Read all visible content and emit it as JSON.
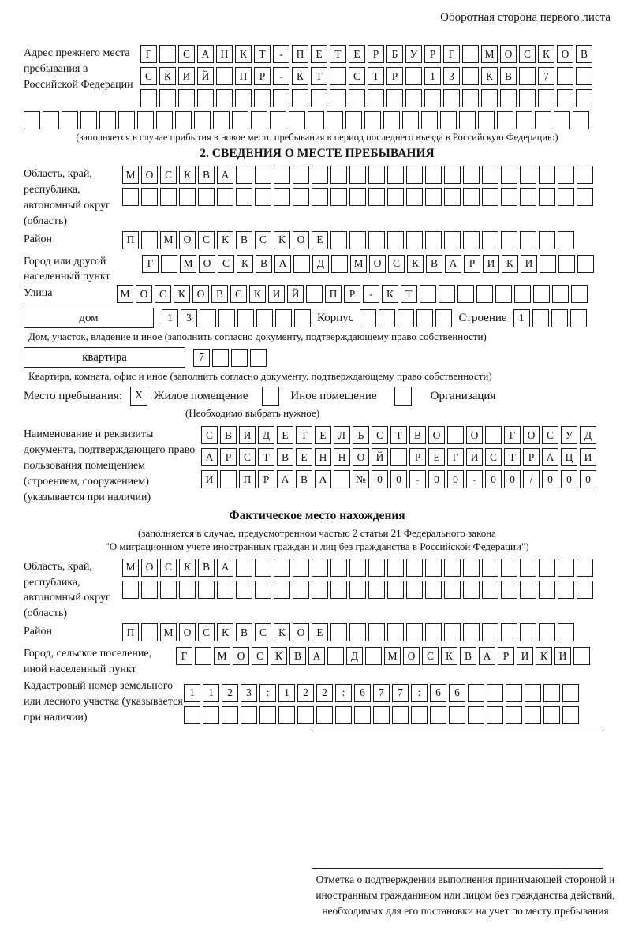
{
  "page": {
    "header_note": "Оборотная сторона первого листа"
  },
  "prev_address": {
    "label": "Адрес прежнего места пребывания в Российской Федерации",
    "row1": {
      "text": "Г САНКТ-ПЕТЕРБУРГ МОСКОВ",
      "len": 24
    },
    "row2": {
      "text": "СКИЙ ПР-КТ СТР 13 КВ 7",
      "len": 24
    },
    "row3": {
      "text": "",
      "len": 24
    },
    "row4": {
      "text": "",
      "len": 30
    },
    "note": "(заполняется в случае прибытия в новое место пребывания в период последнего въезда в Российскую Федерацию)"
  },
  "section2": {
    "title": "2. СВЕДЕНИЯ О МЕСТЕ ПРЕБЫВАНИЯ",
    "region": {
      "label": "Область, край, республика, автономный округ (область)",
      "row1": {
        "text": "МОСКВА",
        "len": 25
      },
      "row2": {
        "text": "",
        "len": 25
      }
    },
    "district": {
      "label": "Район",
      "row": {
        "text": "П МОСКВСКОЕ",
        "len": 24
      }
    },
    "city": {
      "label": "Город или другой населенный пункт",
      "row": {
        "text": "Г МОСКВА Д МОСКВАРИКИ",
        "len": 24
      }
    },
    "street": {
      "label": "Улица",
      "row": {
        "text": "МОСКОВСКИЙ ПР-КТ",
        "len": 25
      }
    },
    "house": {
      "label": "дом",
      "row": {
        "text": "13",
        "len": 8
      },
      "korpus_label": "Корпус",
      "korpus_row": {
        "text": "",
        "len": 5
      },
      "stroenie_label": "Строение",
      "stroenie_row": {
        "text": "1",
        "len": 4
      },
      "note": "Дом, участок, владение и иное (заполнить согласно документу, подтверждающему право собственности)"
    },
    "apartment": {
      "label": "квартира",
      "row": {
        "text": "7",
        "len": 4
      },
      "note": "Квартира, комната, офис и иное (заполнить согласно документу, подтверждающему право собственности)"
    },
    "stay_type": {
      "label": "Место пребывания:",
      "options": [
        {
          "label": "Жилое помещение",
          "checked": "X"
        },
        {
          "label": "Иное помещение",
          "checked": ""
        },
        {
          "label": "Организация",
          "checked": ""
        }
      ],
      "note": "(Необходимо выбрать нужное)"
    },
    "document": {
      "label": "Наименование и реквизиты документа, подтверждающего право пользования помещением (строением, сооружением) (указывается при наличии)",
      "row1": {
        "text": "СВИДЕТЕЛЬСТВО О ГОСУД",
        "len": 21
      },
      "row2": {
        "text": "АРСТВЕННОЙ РЕГИСТРАЦИ",
        "len": 21
      },
      "row3": {
        "text": "И ПРАВА №00-00-00/000",
        "len": 21
      }
    }
  },
  "actual_location": {
    "title": "Фактическое место нахождения",
    "subtitle1": "(заполняется в случае, предусмотренном частью 2 статьи 21 Федерального закона",
    "subtitle2": "\"О миграционном учете иностранных граждан и лиц без гражданства в Российской Федерации\")",
    "region": {
      "label": "Область, край, республика, автономный округ (область)",
      "row1": {
        "text": "МОСКВА",
        "len": 25
      },
      "row2": {
        "text": "",
        "len": 25
      }
    },
    "district": {
      "label": "Район",
      "row": {
        "text": "П МОСКВСКОЕ",
        "len": 24
      }
    },
    "city": {
      "label": "Город, сельское поселение, иной населенный пункт",
      "row": {
        "text": "Г МОСКВА Д МОСКВАРИКИ",
        "len": 22
      }
    },
    "cadastral": {
      "label": "Кадастровый номер земельного или лесного участка (указывается при наличии)",
      "row1": {
        "text": "1123:122:677:66",
        "len": 21
      },
      "row2": {
        "text": "",
        "len": 21
      }
    },
    "stamp_note": "Отметка о подтверждении выполнения принимающей стороной и иностранным гражданином или лицом без гражданства действий, необходимых для его постановки на учет по месту пребывания"
  }
}
